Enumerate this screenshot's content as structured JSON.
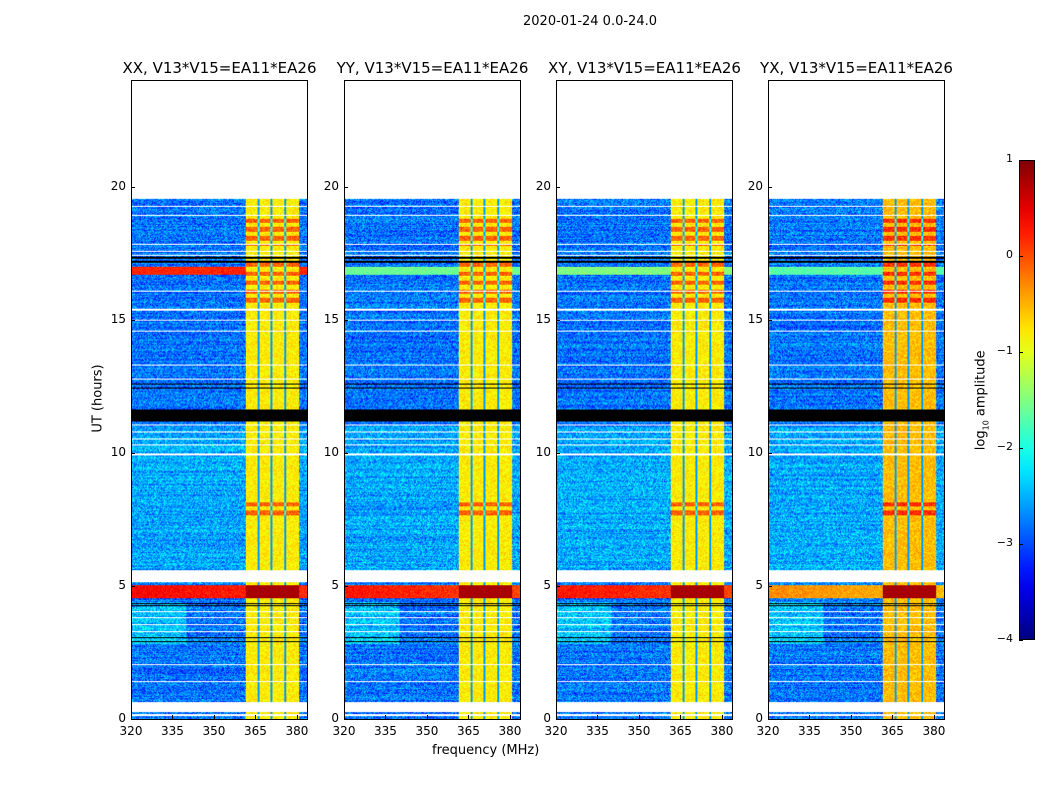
{
  "chart_data": {
    "type": "heatmap",
    "title": "2020-01-24 0.0-24.0",
    "xlabel": "frequency (MHz)",
    "ylabel": "UT (hours)",
    "xlim": [
      320,
      384
    ],
    "ylim": [
      0,
      24
    ],
    "xticks": [
      "320",
      "335",
      "350",
      "365",
      "380"
    ],
    "xtick_values": [
      320,
      335,
      350,
      365,
      380
    ],
    "yticks": [
      "0",
      "5",
      "10",
      "15",
      "20"
    ],
    "ytick_values": [
      0,
      5,
      10,
      15,
      20
    ],
    "colorbar": {
      "label": "log10 amplitude",
      "label_main": "log",
      "label_sub": "10",
      "label_rest": " amplitude",
      "range": [
        -4,
        1
      ],
      "ticks": [
        "1",
        "0",
        "−1",
        "−2",
        "−3",
        "−4"
      ],
      "tick_values": [
        1,
        0,
        -1,
        -2,
        -3,
        -4
      ],
      "colormap": "jet"
    },
    "panels": [
      {
        "title": "XX, V13*V15=EA11*EA26",
        "band_16_7_level": 0.2,
        "band_4_8_level": 0.4
      },
      {
        "title": "YY, V13*V15=EA11*EA26",
        "band_16_7_level": -1.6,
        "band_4_8_level": 0.3
      },
      {
        "title": "XY, V13*V15=EA11*EA26",
        "band_16_7_level": -1.5,
        "band_4_8_level": 0.3
      },
      {
        "title": "YX, V13*V15=EA11*EA26",
        "band_16_7_level": -1.7,
        "band_4_8_level": -0.3
      }
    ],
    "background_level": -2.8,
    "rfi_band_mhz": [
      361.5,
      381
    ],
    "rfi_level": -0.8,
    "rfi_subband_edges_mhz": [
      366.3,
      371,
      376
    ],
    "data_end_hour": 19.55,
    "white_gaps_hours": [
      [
        0.28,
        0.65
      ],
      [
        5.15,
        5.6
      ]
    ],
    "flagged_black_hours": [
      [
        11.2,
        11.65
      ]
    ],
    "white_lines_hours": [
      0.15,
      1.4,
      2.05,
      3.3,
      3.55,
      3.8,
      4.05,
      9.95,
      10.3,
      10.55,
      10.8,
      11.05,
      12.8,
      13.3,
      14.6,
      15.0,
      15.4,
      16.1,
      17.45,
      17.6,
      17.85,
      18.95,
      19.3
    ],
    "black_lines_hours": [
      2.9,
      3.05,
      4.25,
      4.35,
      12.45,
      12.6,
      17.2,
      17.35
    ],
    "bright_patches_hours": [
      [
        4.55,
        5.05
      ],
      [
        7.6,
        8.3
      ],
      [
        17.8,
        18.9
      ],
      [
        15.5,
        17.2
      ]
    ]
  }
}
